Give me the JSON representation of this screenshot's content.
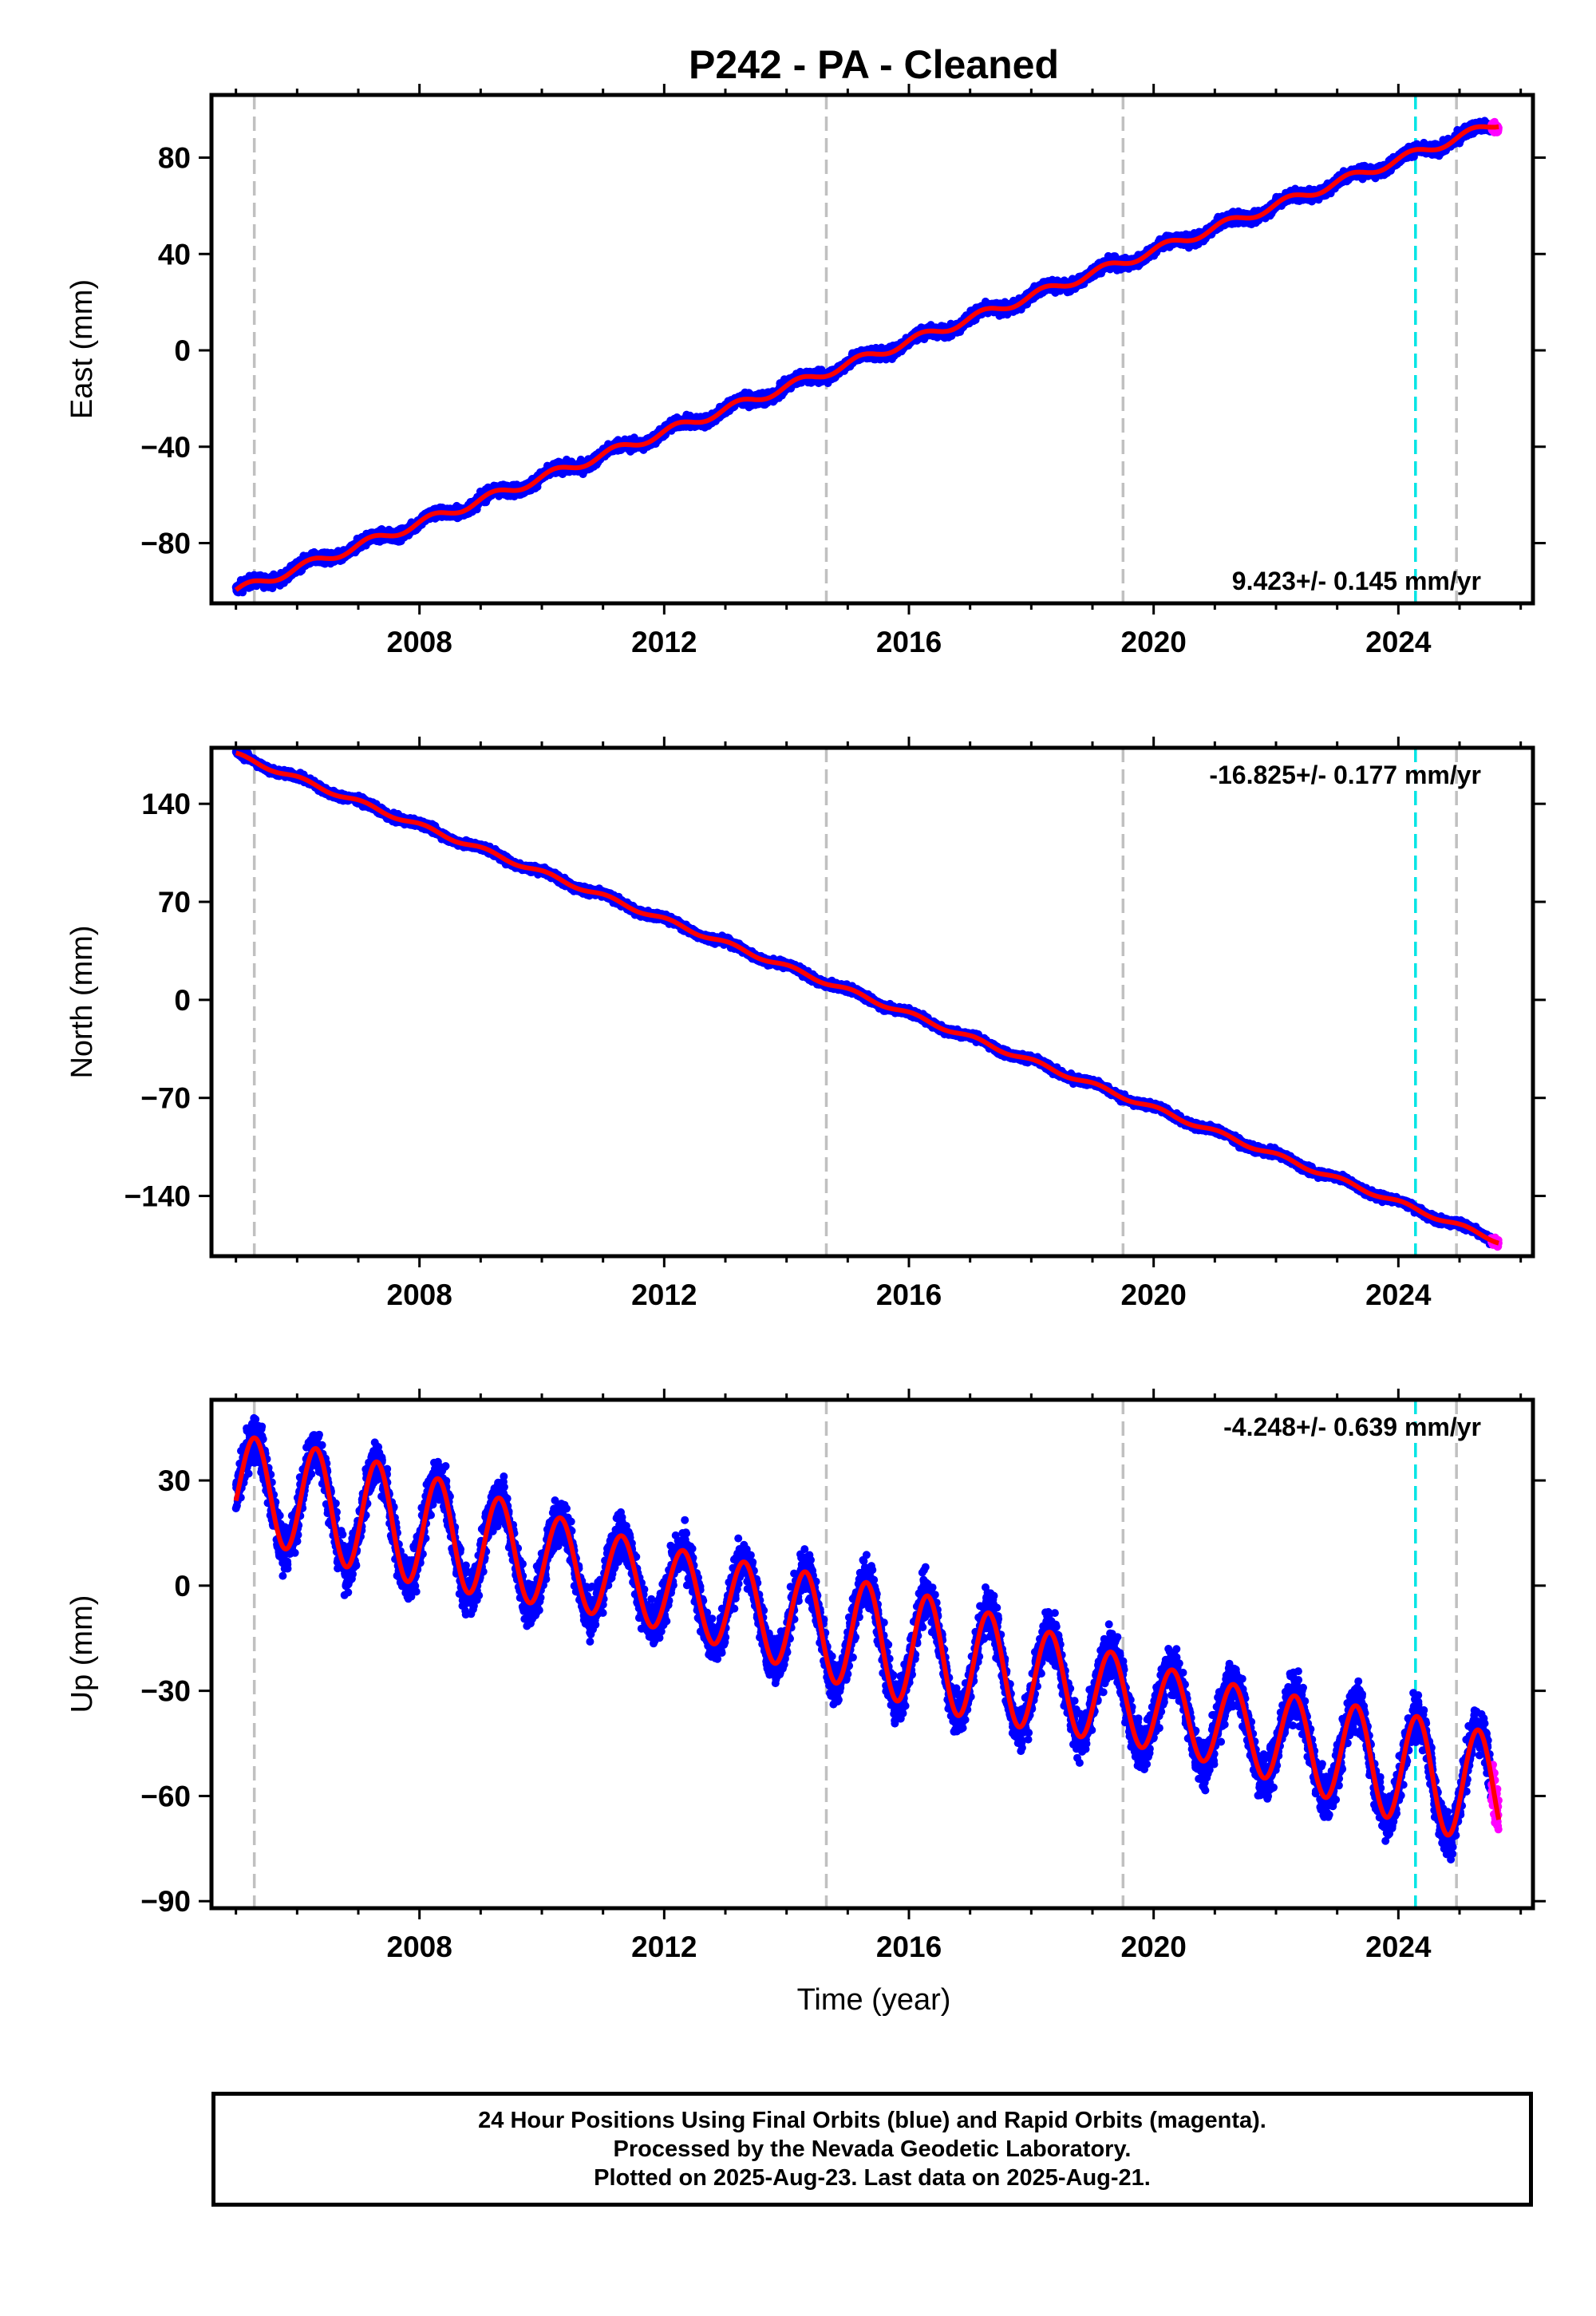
{
  "title": "P242  - PA - Cleaned",
  "xlabel": "Time (year)",
  "footer": {
    "line1": "24 Hour Positions Using Final Orbits (blue) and Rapid Orbits (magenta).",
    "line2": "Processed by the Nevada Geodetic Laboratory.",
    "line3": "Plotted on 2025-Aug-23. Last data on 2025-Aug-21."
  },
  "colors": {
    "final_orbits": "#0000ff",
    "rapid_orbits": "#ff00ff",
    "model_fit": "#ff0000",
    "equipment_change_line": "#c0c0c0",
    "earthquake_line": "#00e5e5"
  },
  "chart_data": [
    {
      "type": "scatter",
      "component": "East",
      "ylabel": "East (mm)",
      "rate": "9.423+/- 0.145 mm/yr",
      "xlim": [
        2004.6,
        2026.2
      ],
      "ylim": [
        -105,
        106
      ],
      "xticks": [
        2008,
        2012,
        2016,
        2020,
        2024
      ],
      "yticks": [
        -80,
        -40,
        0,
        40,
        80
      ],
      "vlines_gray": [
        2005.3,
        2014.65,
        2019.5,
        2024.95
      ],
      "vline_cyan": 2024.28,
      "trend": {
        "start_year": 2005.0,
        "start_value": -100,
        "slope": 9.423
      },
      "seasonal": {
        "amplitude": 1.8,
        "phase": 0.3,
        "noise": 1.6
      },
      "series": [
        {
          "name": "Final Orbits",
          "x_range": [
            2005.0,
            2025.52
          ],
          "color": "#0000ff"
        },
        {
          "name": "Rapid Orbits",
          "x_range": [
            2025.52,
            2025.64
          ],
          "color": "#ff00ff"
        },
        {
          "name": "Model",
          "color": "#ff0000"
        }
      ]
    },
    {
      "type": "scatter",
      "component": "North",
      "ylabel": "North (mm)",
      "rate": "-16.825+/- 0.177 mm/yr",
      "xlim": [
        2004.6,
        2026.2
      ],
      "ylim": [
        -183,
        180
      ],
      "xticks": [
        2008,
        2012,
        2016,
        2020,
        2024
      ],
      "yticks": [
        -140,
        -70,
        0,
        70,
        140
      ],
      "vlines_gray": [
        2005.3,
        2014.65,
        2019.5,
        2024.95
      ],
      "vline_cyan": 2024.28,
      "trend": {
        "start_year": 2005.0,
        "start_value": 175,
        "slope": -16.825
      },
      "seasonal": {
        "amplitude": 1.6,
        "phase": 1.1,
        "noise": 1.8
      },
      "series": [
        {
          "name": "Final Orbits",
          "x_range": [
            2005.0,
            2025.52
          ],
          "color": "#0000ff"
        },
        {
          "name": "Rapid Orbits",
          "x_range": [
            2025.52,
            2025.64
          ],
          "color": "#ff00ff"
        },
        {
          "name": "Model",
          "color": "#ff0000"
        }
      ]
    },
    {
      "type": "scatter",
      "component": "Up",
      "ylabel": "Up (mm)",
      "rate": "-4.248+/- 0.639 mm/yr",
      "xlim": [
        2004.6,
        2026.2
      ],
      "ylim": [
        -92,
        53
      ],
      "xticks": [
        2008,
        2012,
        2016,
        2020,
        2024
      ],
      "yticks": [
        -90,
        -60,
        -30,
        0,
        30
      ],
      "vlines_gray": [
        2005.3,
        2014.65,
        2019.5,
        2024.95
      ],
      "vline_cyan": 2024.28,
      "trend": {
        "start_year": 2005.0,
        "start_value": 29,
        "slope": -4.248
      },
      "seasonal": {
        "amplitude": 14,
        "phase": -0.35,
        "noise": 4.5
      },
      "series": [
        {
          "name": "Final Orbits",
          "x_range": [
            2005.0,
            2025.52
          ],
          "color": "#0000ff"
        },
        {
          "name": "Rapid Orbits",
          "x_range": [
            2025.52,
            2025.64
          ],
          "color": "#ff00ff"
        },
        {
          "name": "Model",
          "color": "#ff0000"
        }
      ]
    }
  ]
}
